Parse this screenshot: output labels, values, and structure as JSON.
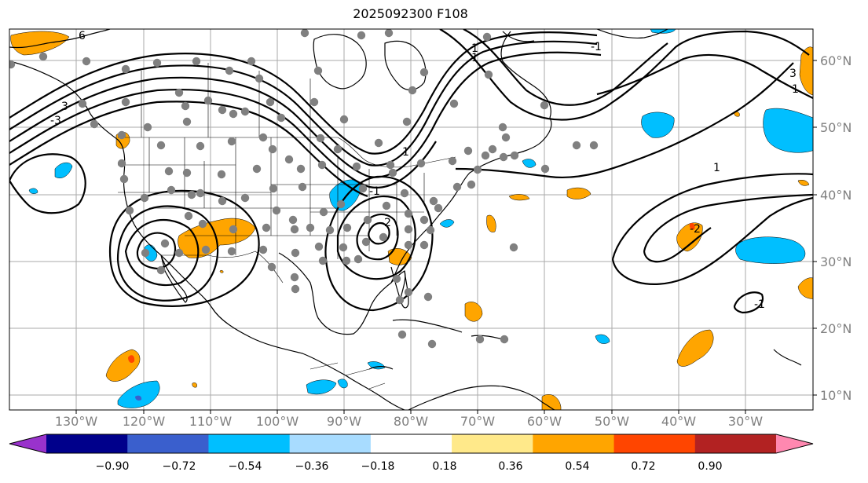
{
  "title": "2025092300 F108",
  "map": {
    "projection": "cylindrical",
    "lon_range_deg": [
      -140,
      -21
    ],
    "lat_range_deg": [
      7.5,
      65
    ],
    "lat_tick_labels": [
      "60°N",
      "50°N",
      "40°N",
      "30°N",
      "20°N",
      "10°N"
    ],
    "lon_tick_labels": [
      "130°W",
      "120°W",
      "110°W",
      "100°W",
      "90°W",
      "80°W",
      "70°W",
      "60°W",
      "50°W",
      "40°W",
      "30°W"
    ],
    "gridlines": true,
    "features": [
      "coastlines",
      "country borders",
      "us state borders",
      "lakes"
    ],
    "contour_style": "black solid lines",
    "visible_contour_labels": [
      "6",
      "-3",
      "3",
      "1",
      "-1",
      "1",
      "-1",
      "-2",
      "-1",
      "3",
      "1",
      "-2",
      "1",
      "1"
    ],
    "station_marker_color": "#808080",
    "station_marker_count_approx": 110
  },
  "colorbar": {
    "orientation": "horizontal",
    "extend": "both",
    "tick_labels": [
      "−0.90",
      "−0.72",
      "−0.54",
      "−0.36",
      "−0.18",
      "0.18",
      "0.36",
      "0.54",
      "0.72",
      "0.90"
    ],
    "colors": {
      "below_min": "#9932cc",
      "bins": [
        "#00008b",
        "#3a5fcd",
        "#00bfff",
        "#a8dcff",
        "#ffffff",
        "#ffe98a",
        "#ffa500",
        "#ff4500",
        "#b22222"
      ],
      "above_max": "#ff88b0"
    }
  },
  "shading": {
    "positive_color": "#ffa500",
    "strong_positive_color": "#ff4500",
    "negative_color": "#00bfff",
    "strong_negative_color": "#3a5fcd"
  }
}
